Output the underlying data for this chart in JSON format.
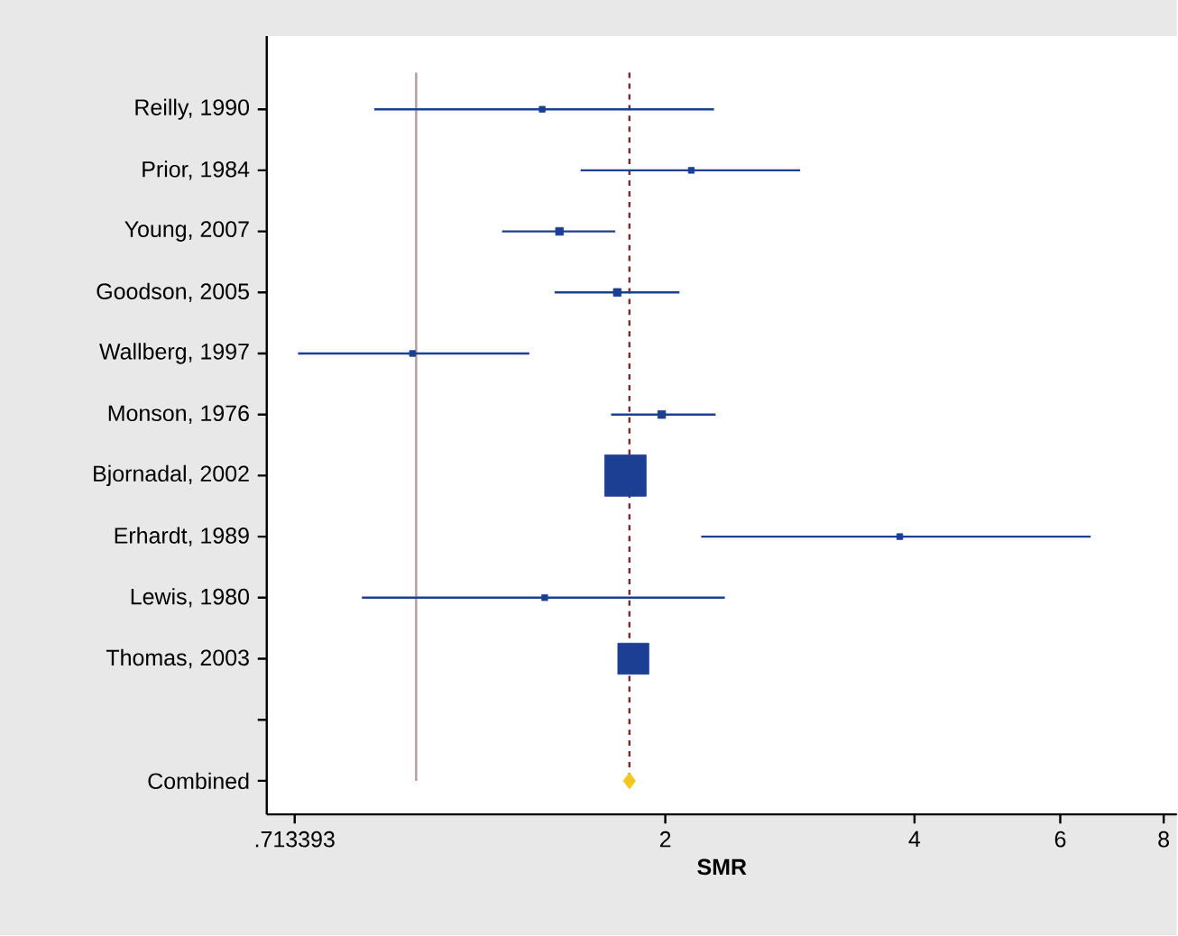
{
  "chart_data": {
    "type": "scatter",
    "orientation": "horizontal",
    "log": "x",
    "xlabel": "SMR",
    "categories": [
      "Reilly, 1990",
      "Prior, 1984",
      "Young, 2007",
      "Goodson, 2005",
      "Wallberg, 1997",
      "Monson, 1976",
      "Bjornadal, 2002",
      "Erhardt, 1989",
      "Lewis, 1980",
      "Thomas, 2003",
      null,
      "Combined"
    ],
    "series": [
      {
        "type": "bubble",
        "marker": "square",
        "color": "#1c3f94",
        "values": [
          1.42,
          2.15,
          1.49,
          1.75,
          0.99,
          1.98,
          1.79,
          3.84,
          1.43,
          1.83,
          null,
          null
        ],
        "sizes": [
          0.02,
          0.02,
          0.035,
          0.035,
          0.02,
          0.035,
          1,
          0.02,
          0.02,
          0.56,
          null,
          null
        ],
        "errors": [
          [
            0.89,
            2.29
          ],
          [
            1.58,
            2.91
          ],
          [
            1.27,
            1.74
          ],
          [
            1.47,
            2.08
          ],
          [
            0.72,
            1.37
          ],
          [
            1.72,
            2.3
          ],
          null,
          [
            2.21,
            6.53
          ],
          [
            0.86,
            2.36
          ],
          null,
          null,
          null
        ]
      },
      {
        "type": "scatter",
        "marker": "diamond",
        "color": "#f2c81e",
        "values": [
          null,
          null,
          null,
          null,
          null,
          null,
          null,
          null,
          null,
          null,
          null,
          1.81
        ]
      }
    ],
    "xlim": [
      0.66,
      8.3
    ],
    "xticks": [
      {
        "value": 0.713393,
        "label": ".713393"
      },
      2,
      4,
      6,
      8
    ],
    "ref_lines": [
      {
        "axis": "x",
        "value": 1,
        "color": "#b89a9a",
        "line_style": "solid"
      },
      {
        "axis": "x",
        "value": 1.81,
        "color": "#7a2a2a",
        "line_style": "dashed"
      }
    ],
    "grid": false
  }
}
